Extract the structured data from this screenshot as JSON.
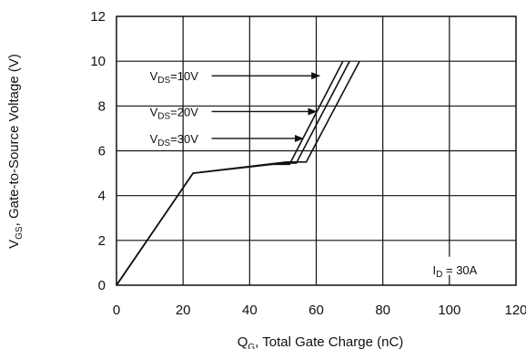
{
  "chart_data": {
    "type": "line",
    "title": "",
    "xlabel": {
      "main": "Q",
      "sub": "G",
      "rest": ", Total Gate Charge (nC)"
    },
    "ylabel": {
      "main": "V",
      "sub": "GS",
      "rest": ", Gate-to-Source Voltage (V)"
    },
    "xlim": [
      0,
      120
    ],
    "ylim": [
      0,
      12
    ],
    "x_ticks": [
      "0",
      "20",
      "40",
      "60",
      "80",
      "100",
      "120"
    ],
    "y_ticks": [
      "0",
      "2",
      "4",
      "6",
      "8",
      "10",
      "12"
    ],
    "grid": true,
    "series": [
      {
        "name": "VDS=10V",
        "x": [
          0,
          23,
          47,
          52,
          68
        ],
        "y": [
          0,
          5,
          5.4,
          5.4,
          10
        ]
      },
      {
        "name": "VDS=20V",
        "x": [
          0,
          23,
          49,
          54,
          70
        ],
        "y": [
          0,
          5,
          5.45,
          5.45,
          10
        ]
      },
      {
        "name": "VDS=30V",
        "x": [
          0,
          23,
          51,
          57,
          73
        ],
        "y": [
          0,
          5,
          5.5,
          5.5,
          10
        ]
      }
    ],
    "annotations": [
      {
        "main": "V",
        "sub": "DS",
        "rest": "=10V",
        "data_x": 10,
        "data_y": 9.35,
        "arrow_to_x": 61,
        "arrow_to_y": 9.35
      },
      {
        "main": "V",
        "sub": "DS",
        "rest": "=20V",
        "data_x": 10,
        "data_y": 7.75,
        "arrow_to_x": 60,
        "arrow_to_y": 7.75
      },
      {
        "main": "V",
        "sub": "DS",
        "rest": "=30V",
        "data_x": 10,
        "data_y": 6.55,
        "arrow_to_x": 56,
        "arrow_to_y": 6.55
      },
      {
        "main": "I",
        "sub": "D",
        "rest": " = 30A",
        "data_x": 95,
        "data_y": 0.7
      }
    ],
    "colors": {
      "line": "#111111",
      "grid": "#111111",
      "background": "#ffffff"
    }
  }
}
